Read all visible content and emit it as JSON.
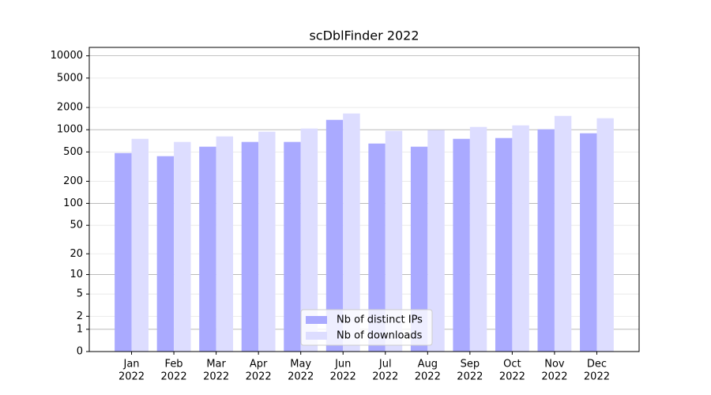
{
  "chart_data": {
    "type": "bar",
    "title": "scDblFinder 2022",
    "scale": "log1p",
    "categories": [
      [
        "Jan",
        "2022"
      ],
      [
        "Feb",
        "2022"
      ],
      [
        "Mar",
        "2022"
      ],
      [
        "Apr",
        "2022"
      ],
      [
        "May",
        "2022"
      ],
      [
        "Jun",
        "2022"
      ],
      [
        "Jul",
        "2022"
      ],
      [
        "Aug",
        "2022"
      ],
      [
        "Sep",
        "2022"
      ],
      [
        "Oct",
        "2022"
      ],
      [
        "Nov",
        "2022"
      ],
      [
        "Dec",
        "2022"
      ]
    ],
    "series": [
      {
        "name": "Nb of distinct IPs",
        "color": "#aaaaff",
        "values": [
          483,
          438,
          589,
          683,
          683,
          1360,
          650,
          589,
          753,
          772,
          1012,
          895
        ]
      },
      {
        "name": "Nb of downloads",
        "color": "#ddddff",
        "values": [
          753,
          683,
          811,
          940,
          1038,
          1657,
          964,
          988,
          1090,
          1145,
          1538,
          1430
        ]
      }
    ],
    "ylim": [
      0,
      13000
    ],
    "yticks": [
      0,
      1,
      2,
      5,
      10,
      20,
      50,
      100,
      200,
      500,
      1000,
      2000,
      5000,
      10000
    ],
    "grid": true,
    "legend": "lower center"
  }
}
